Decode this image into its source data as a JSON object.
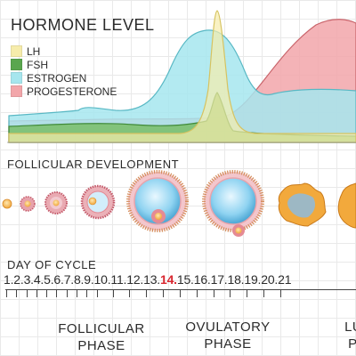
{
  "hormone_level": {
    "title": "HORMONE LEVEL",
    "legend": [
      {
        "label": "LH",
        "color": "#f6ecab"
      },
      {
        "label": "FSH",
        "color": "#5aa64f"
      },
      {
        "label": "ESTROGEN",
        "color": "#a6e6ee"
      },
      {
        "label": "PROGESTERONE",
        "color": "#f2a6aa"
      }
    ]
  },
  "follicular_development": {
    "title": "FOLLICULAR DEVELOPMENT"
  },
  "day_of_cycle": {
    "title": "DAY OF CYCLE",
    "days": [
      "1.",
      "2.",
      "3.",
      "4.",
      "5.",
      "6.",
      "7.",
      "8.",
      "9.",
      "10.",
      "11.",
      "12.",
      "13.",
      "14.",
      "15.",
      "16.",
      "17.",
      "18.",
      "19.",
      "20.",
      "21"
    ],
    "highlight_day": "14.",
    "highlight_color": "#d8262f"
  },
  "phases": {
    "follicular": "FOLLICULAR\nPHASE",
    "ovulatory": "OVULATORY\nPHASE",
    "luteal": "LUT\nPH"
  }
}
